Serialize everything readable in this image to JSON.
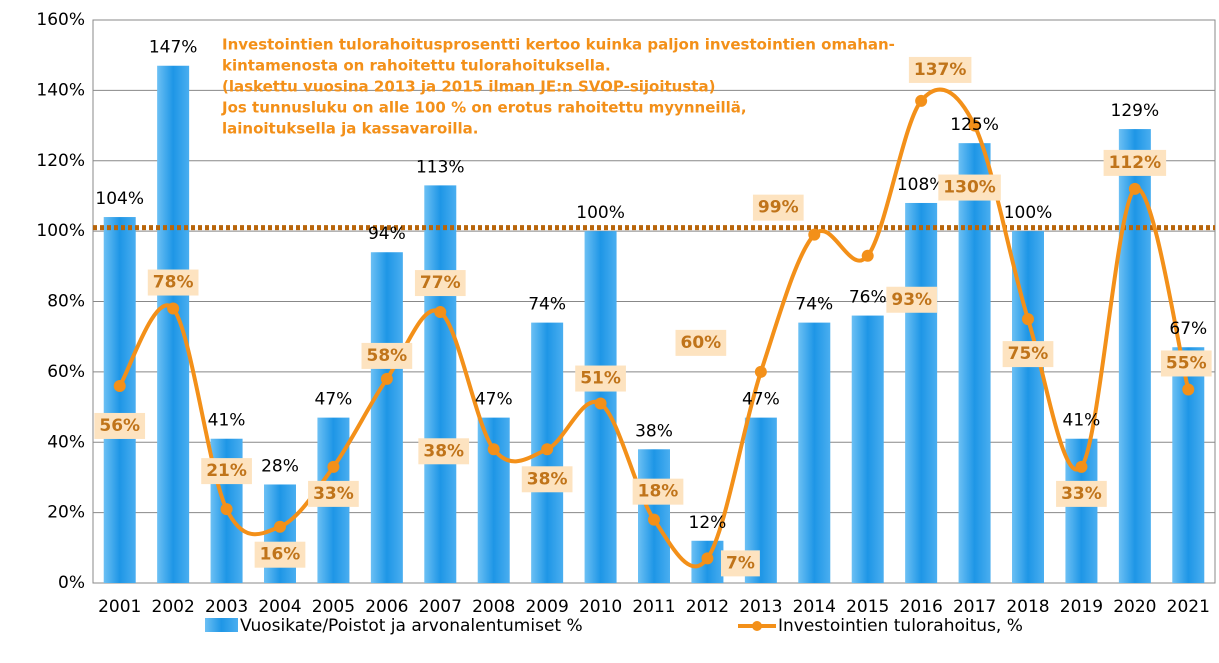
{
  "chart_data": {
    "type": "bar-line",
    "annotation": [
      "Investointien tulorahoitusprosentti kertoo kuinka paljon investointien omahan-",
      "kintamenosta on rahoitettu tulorahoituksella.",
      "(laskettu vuosina 2013 ja 2015 ilman JE:n SVOP-sijoitusta)",
      "Jos tunnusluku on alle 100 % on erotus rahoitettu myynneillä,",
      "lainoituksella ja kassavaroilla."
    ],
    "categories": [
      "2001",
      "2002",
      "2003",
      "2004",
      "2005",
      "2006",
      "2007",
      "2008",
      "2009",
      "2010",
      "2011",
      "2012",
      "2013",
      "2014",
      "2015",
      "2016",
      "2017",
      "2018",
      "2019",
      "2020",
      "2021"
    ],
    "series": [
      {
        "name": "Vuosikate/Poistot ja arvonalentumiset %",
        "type": "bar",
        "color": "#1e96e6",
        "values": [
          104,
          147,
          41,
          28,
          47,
          94,
          113,
          47,
          74,
          100,
          38,
          12,
          47,
          74,
          76,
          108,
          125,
          100,
          41,
          129,
          67
        ],
        "value_labels": [
          "104%",
          "147%",
          "41%",
          "28%",
          "47%",
          "94%",
          "113%",
          "47%",
          "74%",
          "100%",
          "38%",
          "12%",
          "47%",
          "74%",
          "76%",
          "108%",
          "125%",
          "100%",
          "41%",
          "129%",
          "67%"
        ]
      },
      {
        "name": "Investointien tulorahoitus, %",
        "type": "line",
        "color": "#f39019",
        "values": [
          56,
          78,
          21,
          16,
          33,
          58,
          77,
          38,
          38,
          51,
          18,
          7,
          60,
          99,
          93,
          137,
          130,
          75,
          33,
          112,
          55
        ],
        "value_labels": [
          "56%",
          "78%",
          "21%",
          "16%",
          "33%",
          "58%",
          "77%",
          "38%",
          "38%",
          "51%",
          "18%",
          "7%",
          "60%",
          "99%",
          "93%",
          "137%",
          "130%",
          "75%",
          "33%",
          "112%",
          "55%"
        ]
      }
    ],
    "reference_line": 101,
    "ylim": [
      0,
      160
    ],
    "yticks": [
      {
        "value": 0,
        "label": "0%"
      },
      {
        "value": 20,
        "label": "20%"
      },
      {
        "value": 40,
        "label": "40%"
      },
      {
        "value": 60,
        "label": "60%"
      },
      {
        "value": 80,
        "label": "80%"
      },
      {
        "value": 100,
        "label": "100%"
      },
      {
        "value": 120,
        "label": "120%"
      },
      {
        "value": 140,
        "label": "140%"
      },
      {
        "value": 160,
        "label": "160%"
      }
    ],
    "grid": true
  }
}
